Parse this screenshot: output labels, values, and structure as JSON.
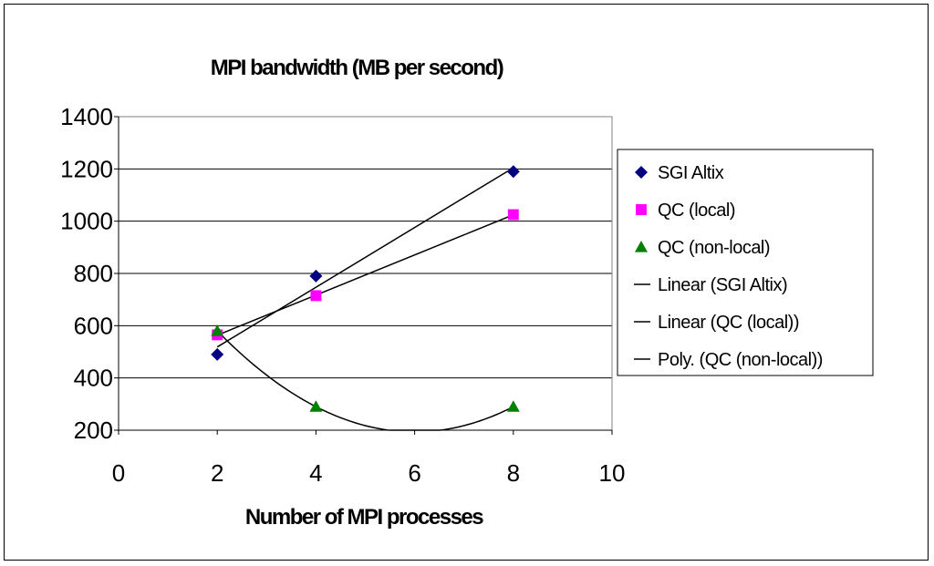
{
  "chart_data": {
    "type": "scatter",
    "title": "MPI bandwidth (MB per second)",
    "xlabel": "Number of MPI processes",
    "ylabel": "",
    "xlim": [
      0,
      10
    ],
    "ylim": [
      200,
      1400
    ],
    "x_ticks": [
      0,
      2,
      4,
      6,
      8,
      10
    ],
    "y_ticks": [
      200,
      400,
      600,
      800,
      1000,
      1200,
      1400
    ],
    "grid": "horizontal major gridlines",
    "legend_position": "right",
    "series": [
      {
        "name": "SGI Altix",
        "marker": "diamond",
        "color": "#000080",
        "x": [
          2,
          4,
          8
        ],
        "y": [
          490,
          790,
          1190
        ]
      },
      {
        "name": "QC (local)",
        "marker": "square",
        "color": "#ff00ff",
        "x": [
          2,
          4,
          8
        ],
        "y": [
          565,
          715,
          1025
        ]
      },
      {
        "name": "QC (non-local)",
        "marker": "triangle",
        "color": "#008000",
        "x": [
          2,
          4,
          8
        ],
        "y": [
          580,
          290,
          290
        ]
      }
    ],
    "trendlines": [
      {
        "name": "Linear (SGI Altix)",
        "kind": "linear",
        "of": "SGI Altix",
        "color": "#000000"
      },
      {
        "name": "Linear (QC (local))",
        "kind": "linear",
        "of": "QC (local)",
        "color": "#000000"
      },
      {
        "name": "Poly. (QC (non-local))",
        "kind": "polynomial",
        "order": 2,
        "of": "QC (non-local)",
        "color": "#000000"
      }
    ]
  }
}
